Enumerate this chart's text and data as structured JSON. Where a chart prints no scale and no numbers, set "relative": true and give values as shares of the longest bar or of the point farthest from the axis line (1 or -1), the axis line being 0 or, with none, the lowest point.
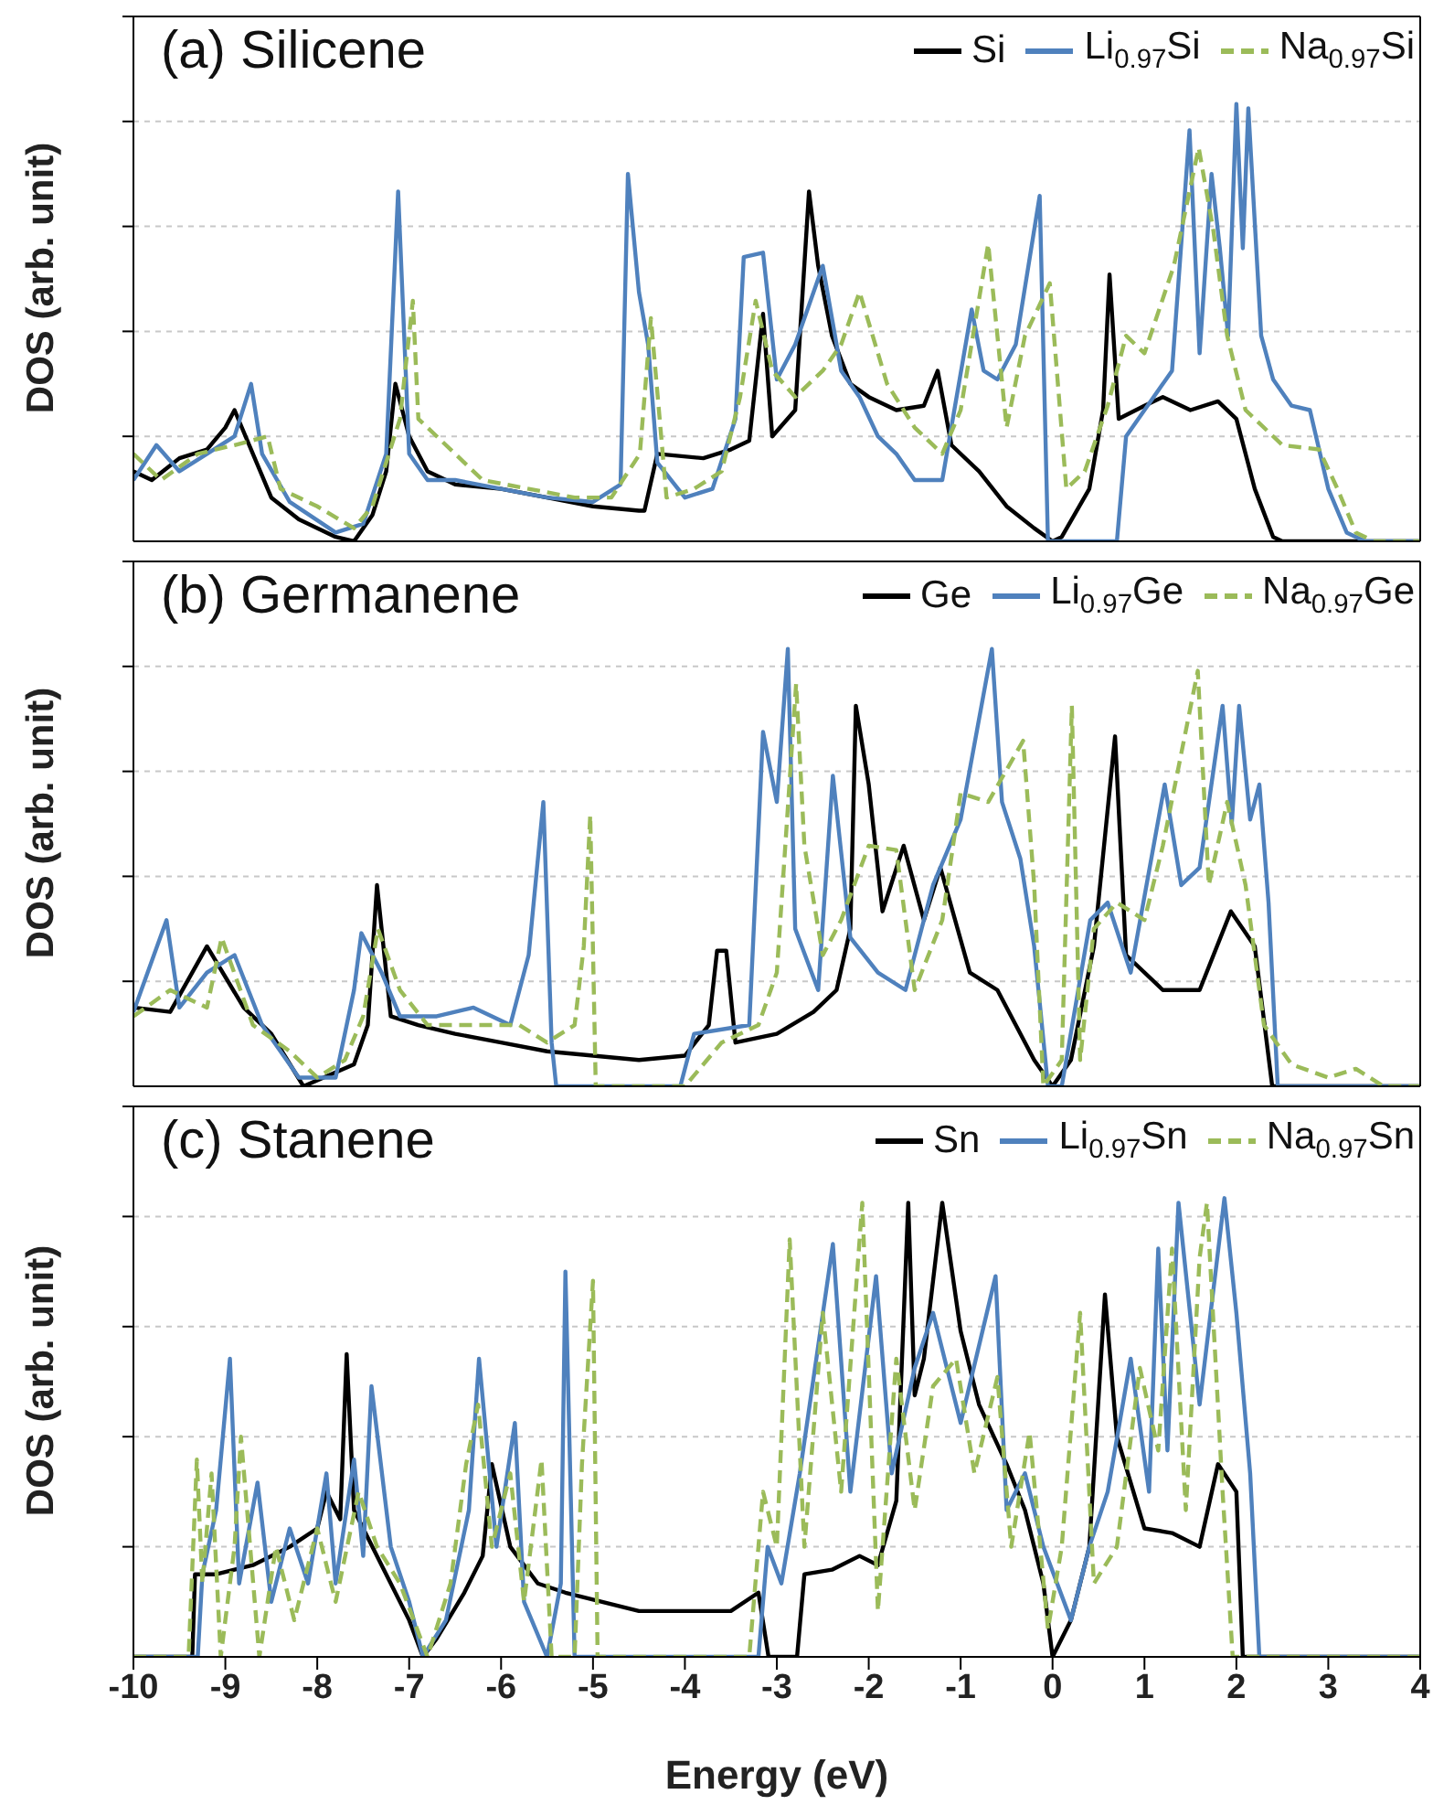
{
  "chart_data": [
    {
      "type": "line",
      "title": "(a) Silicene",
      "ylabel": "DOS (arb. unit)",
      "relative": true,
      "xlim": [
        -10,
        4
      ],
      "xticks": [
        -10,
        -9,
        -8,
        -7,
        -6,
        -5,
        -4,
        -3,
        -2,
        -1,
        0,
        1,
        2,
        3,
        4
      ],
      "tick_labels": false,
      "grid": "y",
      "legend": "top right",
      "series": [
        {
          "name": "Si",
          "color": "#000000",
          "line_style": "solid",
          "x": [
            -10,
            -9.8,
            -9.5,
            -9.2,
            -9.0,
            -8.9,
            -8.7,
            -8.5,
            -8.2,
            -7.8,
            -7.6,
            -7.4,
            -7.25,
            -7.15,
            -7.0,
            -6.8,
            -6.5,
            -6.0,
            -5.5,
            -5.0,
            -4.5,
            -4.44,
            -4.3,
            -3.8,
            -3.5,
            -3.3,
            -3.15,
            -3.05,
            -2.8,
            -2.65,
            -2.55,
            -2.4,
            -2.2,
            -2.0,
            -1.7,
            -1.4,
            -1.25,
            -1.1,
            -0.8,
            -0.5,
            -0.2,
            0,
            0.1,
            0.4,
            0.55,
            0.62,
            0.72,
            1.0,
            1.2,
            1.5,
            1.8,
            2.0,
            2.2,
            2.4,
            2.5,
            4
          ],
          "values": [
            0.16,
            0.14,
            0.19,
            0.21,
            0.26,
            0.3,
            0.2,
            0.1,
            0.05,
            0.01,
            0,
            0.06,
            0.16,
            0.36,
            0.24,
            0.16,
            0.13,
            0.12,
            0.1,
            0.08,
            0.07,
            0.07,
            0.2,
            0.19,
            0.21,
            0.23,
            0.52,
            0.24,
            0.3,
            0.8,
            0.63,
            0.47,
            0.36,
            0.33,
            0.3,
            0.31,
            0.39,
            0.22,
            0.16,
            0.08,
            0.03,
            0,
            0.01,
            0.12,
            0.3,
            0.61,
            0.28,
            0.31,
            0.33,
            0.3,
            0.32,
            0.28,
            0.12,
            0.01,
            0,
            0
          ]
        },
        {
          "name": "Li$_{0.97}$Si",
          "color": "#4f81bd",
          "line_style": "solid",
          "x": [
            -10,
            -9.75,
            -9.5,
            -9.2,
            -8.9,
            -8.72,
            -8.6,
            -8.3,
            -7.8,
            -7.5,
            -7.25,
            -7.12,
            -7.0,
            -6.8,
            -6.5,
            -6.0,
            -5.5,
            -5.0,
            -4.7,
            -4.62,
            -4.5,
            -4.4,
            -4.3,
            -4.0,
            -3.7,
            -3.45,
            -3.36,
            -3.15,
            -3.0,
            -2.8,
            -2.5,
            -2.3,
            -2.1,
            -1.9,
            -1.7,
            -1.5,
            -1.2,
            -0.88,
            -0.75,
            -0.6,
            -0.4,
            -0.14,
            -0.05,
            0.7,
            0.8,
            1.0,
            1.3,
            1.49,
            1.6,
            1.73,
            1.82,
            1.91,
            2.0,
            2.07,
            2.13,
            2.27,
            2.4,
            2.6,
            2.8,
            3.0,
            3.2,
            3.4,
            4
          ],
          "values": [
            0.14,
            0.22,
            0.16,
            0.2,
            0.24,
            0.36,
            0.2,
            0.09,
            0.02,
            0.04,
            0.2,
            0.8,
            0.2,
            0.14,
            0.14,
            0.12,
            0.1,
            0.09,
            0.13,
            0.84,
            0.57,
            0.45,
            0.18,
            0.1,
            0.12,
            0.28,
            0.65,
            0.66,
            0.37,
            0.45,
            0.63,
            0.39,
            0.33,
            0.24,
            0.2,
            0.14,
            0.14,
            0.53,
            0.39,
            0.37,
            0.45,
            0.79,
            0,
            0,
            0.24,
            0.3,
            0.39,
            0.94,
            0.43,
            0.84,
            0.67,
            0.47,
            1,
            0.67,
            0.99,
            0.47,
            0.37,
            0.31,
            0.3,
            0.12,
            0.02,
            0,
            0
          ]
        },
        {
          "name": "Na$_{0.97}$Si",
          "color": "#9bbb59",
          "line_style": "dashed",
          "x": [
            -10,
            -9.7,
            -9.3,
            -8.9,
            -8.54,
            -8.4,
            -8.0,
            -7.6,
            -7.4,
            -7.1,
            -6.96,
            -6.9,
            -6.6,
            -6.2,
            -5.7,
            -5.2,
            -4.8,
            -4.49,
            -4.37,
            -4.2,
            -3.9,
            -3.6,
            -3.4,
            -3.23,
            -3.05,
            -2.8,
            -2.5,
            -2.3,
            -2.1,
            -1.8,
            -1.5,
            -1.2,
            -1.0,
            -0.7,
            -0.5,
            -0.3,
            -0.03,
            0.15,
            0.35,
            0.6,
            0.8,
            1.0,
            1.32,
            1.59,
            1.75,
            1.9,
            2.1,
            2.5,
            2.9,
            3.1,
            3.3,
            3.5,
            4
          ],
          "values": [
            0.2,
            0.14,
            0.2,
            0.22,
            0.24,
            0.12,
            0.08,
            0.03,
            0.08,
            0.28,
            0.55,
            0.28,
            0.22,
            0.14,
            0.12,
            0.1,
            0.1,
            0.2,
            0.51,
            0.1,
            0.12,
            0.16,
            0.33,
            0.55,
            0.39,
            0.33,
            0.39,
            0.45,
            0.57,
            0.36,
            0.26,
            0.2,
            0.3,
            0.68,
            0.26,
            0.47,
            0.59,
            0.12,
            0.16,
            0.31,
            0.47,
            0.43,
            0.63,
            0.9,
            0.71,
            0.47,
            0.3,
            0.22,
            0.21,
            0.12,
            0.02,
            0,
            0
          ]
        }
      ]
    },
    {
      "type": "line",
      "title": "(b) Germanene",
      "ylabel": "DOS (arb. unit)",
      "relative": true,
      "xlim": [
        -10,
        4
      ],
      "xticks": [
        -10,
        -9,
        -8,
        -7,
        -6,
        -5,
        -4,
        -3,
        -2,
        -1,
        0,
        1,
        2,
        3,
        4
      ],
      "tick_labels": false,
      "grid": "y",
      "legend": "top right",
      "series": [
        {
          "name": "Ge",
          "color": "#000000",
          "line_style": "solid",
          "x": [
            -10,
            -9.6,
            -9.2,
            -8.8,
            -8.5,
            -8.15,
            -7.6,
            -7.45,
            -7.35,
            -7.2,
            -6.9,
            -6.5,
            -6.0,
            -5.5,
            -5.0,
            -4.5,
            -4.0,
            -3.74,
            -3.65,
            -3.55,
            -3.45,
            -3.0,
            -2.6,
            -2.35,
            -2.2,
            -2.14,
            -2.0,
            -1.85,
            -1.62,
            -1.4,
            -1.22,
            -0.9,
            -0.6,
            -0.4,
            -0.2,
            0,
            0.2,
            0.45,
            0.68,
            0.8,
            1.2,
            1.6,
            1.94,
            2.2,
            2.39,
            4
          ],
          "values": [
            0.18,
            0.17,
            0.32,
            0.18,
            0.12,
            0,
            0.05,
            0.14,
            0.46,
            0.16,
            0.14,
            0.12,
            0.1,
            0.08,
            0.07,
            0.06,
            0.07,
            0.14,
            0.31,
            0.31,
            0.1,
            0.12,
            0.17,
            0.22,
            0.36,
            0.87,
            0.69,
            0.4,
            0.55,
            0.38,
            0.5,
            0.26,
            0.22,
            0.14,
            0.06,
            0,
            0.06,
            0.32,
            0.8,
            0.3,
            0.22,
            0.22,
            0.4,
            0.32,
            0,
            0
          ]
        },
        {
          "name": "Li$_{0.97}$Ge",
          "color": "#4f81bd",
          "line_style": "solid",
          "x": [
            -10,
            -9.64,
            -9.5,
            -9.2,
            -8.9,
            -8.6,
            -8.2,
            -7.8,
            -7.6,
            -7.52,
            -7.3,
            -7.1,
            -6.7,
            -6.3,
            -5.9,
            -5.7,
            -5.54,
            -5.45,
            -5.4,
            -4.05,
            -3.9,
            -3.3,
            -3.15,
            -3.0,
            -2.88,
            -2.8,
            -2.55,
            -2.39,
            -2.2,
            -1.9,
            -1.6,
            -1.3,
            -1.0,
            -0.66,
            -0.55,
            -0.35,
            -0.2,
            -0.05,
            0.1,
            0.41,
            0.6,
            0.85,
            1.22,
            1.4,
            1.6,
            1.85,
            1.95,
            2.03,
            2.15,
            2.25,
            2.35,
            2.45,
            4
          ],
          "values": [
            0.17,
            0.38,
            0.18,
            0.26,
            0.3,
            0.14,
            0.02,
            0.02,
            0.22,
            0.35,
            0.26,
            0.16,
            0.16,
            0.18,
            0.14,
            0.3,
            0.65,
            0.1,
            0,
            0,
            0.12,
            0.14,
            0.81,
            0.65,
            1,
            0.36,
            0.22,
            0.71,
            0.34,
            0.26,
            0.22,
            0.46,
            0.61,
            1,
            0.65,
            0.52,
            0.32,
            0,
            0,
            0.38,
            0.42,
            0.26,
            0.69,
            0.46,
            0.5,
            0.87,
            0.6,
            0.87,
            0.61,
            0.69,
            0.42,
            0,
            0
          ]
        },
        {
          "name": "Na$_{0.97}$Ge",
          "color": "#9bbb59",
          "line_style": "dashed",
          "x": [
            -10,
            -9.6,
            -9.2,
            -9.04,
            -8.7,
            -8.3,
            -8.0,
            -7.7,
            -7.5,
            -7.34,
            -7.1,
            -6.8,
            -6.3,
            -5.8,
            -5.5,
            -5.2,
            -5.1,
            -5.03,
            -4.97,
            -4.0,
            -3.6,
            -3.2,
            -3.0,
            -2.79,
            -2.7,
            -2.5,
            -2.3,
            -2.0,
            -1.7,
            -1.5,
            -1.2,
            -1.0,
            -0.7,
            -0.32,
            -0.2,
            -0.1,
            0.1,
            0.21,
            0.3,
            0.45,
            0.7,
            1.0,
            1.2,
            1.58,
            1.7,
            1.9,
            2.1,
            2.3,
            2.6,
            3.0,
            3.3,
            3.6,
            4
          ],
          "values": [
            0.16,
            0.22,
            0.18,
            0.34,
            0.14,
            0.08,
            0.02,
            0.06,
            0.16,
            0.36,
            0.22,
            0.14,
            0.14,
            0.14,
            0.1,
            0.14,
            0.32,
            0.62,
            0,
            0,
            0.1,
            0.14,
            0.26,
            0.92,
            0.55,
            0.3,
            0.38,
            0.55,
            0.54,
            0.22,
            0.38,
            0.67,
            0.65,
            0.79,
            0.46,
            0,
            0.06,
            0.87,
            0.06,
            0.36,
            0.42,
            0.38,
            0.55,
            0.95,
            0.46,
            0.65,
            0.46,
            0.14,
            0.05,
            0.02,
            0.04,
            0,
            0
          ]
        }
      ]
    },
    {
      "type": "line",
      "title": "(c) Stanene",
      "xlabel": "Energy (eV)",
      "ylabel": "DOS (arb. unit)",
      "relative": true,
      "xlim": [
        -10,
        4
      ],
      "xticks": [
        -10,
        -9,
        -8,
        -7,
        -6,
        -5,
        -4,
        -3,
        -2,
        -1,
        0,
        1,
        2,
        3,
        4
      ],
      "tick_labels": "x",
      "grid": "y",
      "legend": "top right",
      "series": [
        {
          "name": "Sn",
          "color": "#000000",
          "line_style": "solid",
          "x": [
            -10,
            -9.36,
            -9.33,
            -9.1,
            -8.7,
            -8.3,
            -8.0,
            -7.9,
            -7.75,
            -7.68,
            -7.6,
            -7.3,
            -7.0,
            -6.85,
            -6.7,
            -6.4,
            -6.2,
            -6.1,
            -5.9,
            -5.6,
            -5.3,
            -4.9,
            -4.5,
            -4.0,
            -3.5,
            -3.2,
            -3.09,
            -2.78,
            -2.7,
            -2.4,
            -2.1,
            -1.9,
            -1.7,
            -1.57,
            -1.5,
            -1.4,
            -1.2,
            -1.0,
            -0.8,
            -0.5,
            -0.3,
            -0.1,
            0,
            0.2,
            0.4,
            0.57,
            0.7,
            1.0,
            1.3,
            1.6,
            1.8,
            2.0,
            2.07,
            4
          ],
          "values": [
            0,
            0,
            0.18,
            0.18,
            0.2,
            0.24,
            0.28,
            0.36,
            0.3,
            0.66,
            0.32,
            0.2,
            0.08,
            0,
            0.04,
            0.14,
            0.22,
            0.42,
            0.24,
            0.16,
            0.14,
            0.12,
            0.1,
            0.1,
            0.1,
            0.14,
            0,
            0,
            0.18,
            0.19,
            0.22,
            0.2,
            0.34,
            0.99,
            0.57,
            0.65,
            0.99,
            0.71,
            0.55,
            0.42,
            0.32,
            0.16,
            0,
            0.08,
            0.24,
            0.79,
            0.48,
            0.28,
            0.27,
            0.24,
            0.42,
            0.36,
            0,
            0
          ]
        },
        {
          "name": "Li$_{0.97}$Sn",
          "color": "#4f81bd",
          "line_style": "solid",
          "x": [
            -10,
            -9.3,
            -9.25,
            -9.1,
            -8.95,
            -8.85,
            -8.65,
            -8.5,
            -8.3,
            -8.1,
            -7.9,
            -7.8,
            -7.6,
            -7.5,
            -7.41,
            -7.2,
            -7.0,
            -6.85,
            -6.6,
            -6.35,
            -6.24,
            -6.05,
            -5.85,
            -5.75,
            -5.5,
            -5.35,
            -5.3,
            -5.2,
            -3.2,
            -3.1,
            -2.95,
            -2.75,
            -2.39,
            -2.2,
            -1.92,
            -1.75,
            -1.5,
            -1.3,
            -1.0,
            -0.62,
            -0.5,
            -0.3,
            -0.1,
            0.2,
            0.4,
            0.6,
            0.85,
            1.05,
            1.15,
            1.25,
            1.37,
            1.6,
            1.87,
            2.0,
            2.15,
            2.25,
            4
          ],
          "values": [
            0,
            0,
            0.18,
            0.32,
            0.65,
            0.16,
            0.38,
            0.12,
            0.28,
            0.16,
            0.4,
            0.16,
            0.43,
            0.22,
            0.59,
            0.24,
            0.12,
            0,
            0.08,
            0.32,
            0.65,
            0.24,
            0.51,
            0.12,
            0,
            0.16,
            0.84,
            0,
            0,
            0.24,
            0.16,
            0.4,
            0.9,
            0.36,
            0.83,
            0.4,
            0.63,
            0.75,
            0.51,
            0.83,
            0.32,
            0.4,
            0.24,
            0.08,
            0.24,
            0.36,
            0.65,
            0.36,
            0.89,
            0.45,
            0.99,
            0.55,
            1,
            0.75,
            0.4,
            0,
            0
          ]
        },
        {
          "name": "Na$_{0.97}$Sn",
          "color": "#9bbb59",
          "line_style": "dashed",
          "x": [
            -10,
            -9.4,
            -9.31,
            -9.25,
            -9.15,
            -9.05,
            -8.9,
            -8.83,
            -8.63,
            -8.45,
            -8.25,
            -8.0,
            -7.8,
            -7.55,
            -7.35,
            -7.1,
            -6.8,
            -6.55,
            -6.38,
            -6.25,
            -6.1,
            -5.9,
            -5.75,
            -5.56,
            -5.45,
            -5.2,
            -5.12,
            -5.0,
            -4.95,
            -3.3,
            -3.15,
            -3.0,
            -2.86,
            -2.7,
            -2.5,
            -2.3,
            -2.07,
            -1.9,
            -1.7,
            -1.5,
            -1.3,
            -1.05,
            -0.85,
            -0.6,
            -0.45,
            -0.25,
            -0.05,
            0.1,
            0.3,
            0.45,
            0.7,
            0.95,
            1.15,
            1.3,
            1.45,
            1.6,
            1.68,
            1.85,
            1.96,
            4
          ],
          "values": [
            0,
            0,
            0.43,
            0.16,
            0.4,
            0,
            0.24,
            0.48,
            0,
            0.24,
            0.08,
            0.28,
            0.12,
            0.36,
            0.24,
            0.16,
            0,
            0.16,
            0.42,
            0.55,
            0.24,
            0.4,
            0.12,
            0.43,
            0,
            0,
            0.42,
            0.82,
            0,
            0,
            0.36,
            0.24,
            0.91,
            0.24,
            0.75,
            0.36,
            0.99,
            0.1,
            0.65,
            0.32,
            0.59,
            0.65,
            0.4,
            0.61,
            0.24,
            0.49,
            0.06,
            0.24,
            0.75,
            0.16,
            0.24,
            0.63,
            0.45,
            0.89,
            0.32,
            0.87,
            0.99,
            0.36,
            0,
            0
          ]
        }
      ]
    }
  ]
}
